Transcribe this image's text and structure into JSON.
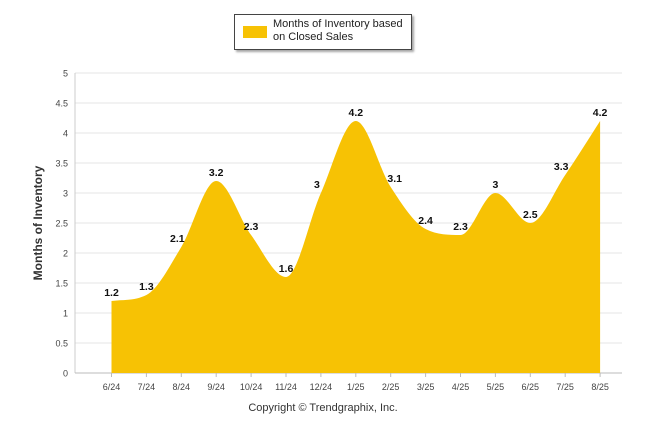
{
  "chart_data": {
    "type": "area",
    "categories": [
      "6/24",
      "7/24",
      "8/24",
      "9/24",
      "10/24",
      "11/24",
      "12/24",
      "1/25",
      "2/25",
      "3/25",
      "4/25",
      "5/25",
      "6/25",
      "7/25",
      "8/25"
    ],
    "series": [
      {
        "name": "Months of Inventory based on Closed Sales",
        "values": [
          1.2,
          1.3,
          2.1,
          3.2,
          2.3,
          1.6,
          3,
          4.2,
          3.1,
          2.4,
          2.3,
          3,
          2.5,
          3.3,
          4.2
        ],
        "color": "#F7C204"
      }
    ],
    "data_labels": [
      "1.2",
      "1.3",
      "2.1",
      "3.2",
      "2.3",
      "1.6",
      "3",
      "4.2",
      "3.1",
      "2.4",
      "2.3",
      "3",
      "2.5",
      "3.3",
      "4.2"
    ],
    "yticks": [
      "0",
      "0.5",
      "1",
      "1.5",
      "2",
      "2.5",
      "3",
      "3.5",
      "4",
      "4.5",
      "5"
    ],
    "ylabel": "Months of Inventory",
    "xlabel": "",
    "ylim": [
      0,
      5
    ],
    "grid": true,
    "legend_position": "top-center"
  },
  "legend": {
    "label": "Months of Inventory based on Closed Sales"
  },
  "footer": {
    "text": "Copyright © Trendgraphix, Inc."
  }
}
